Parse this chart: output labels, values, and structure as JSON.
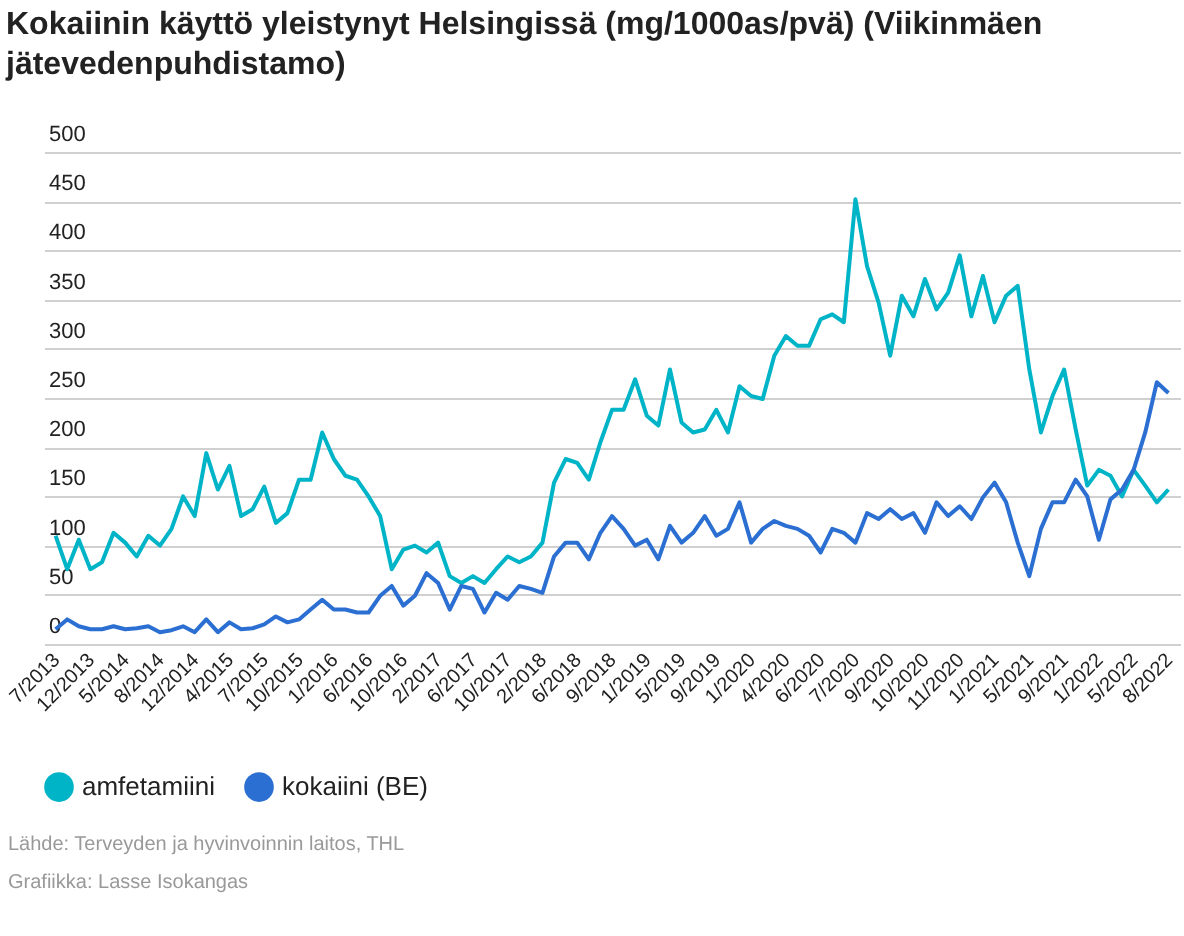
{
  "chart_data": {
    "type": "line",
    "title": "Kokaiinin käyttö yleistynyt Helsingissä (mg/1000as/pvä) (Viikinmäen jätevedenpuhdistamo)",
    "categories": [
      "7/2013",
      null,
      null,
      "12/2013",
      null,
      null,
      "5/2014",
      null,
      null,
      "8/2014",
      null,
      null,
      "12/2014",
      null,
      null,
      "4/2015",
      null,
      null,
      "7/2015",
      null,
      null,
      "10/2015",
      null,
      null,
      "1/2016",
      null,
      null,
      "6/2016",
      null,
      null,
      "10/2016",
      null,
      null,
      "2/2017",
      null,
      null,
      "6/2017",
      null,
      null,
      "10/2017",
      null,
      null,
      "2/2018",
      null,
      null,
      "6/2018",
      null,
      null,
      "9/2018",
      null,
      null,
      "1/2019",
      null,
      null,
      "5/2019",
      null,
      null,
      "9/2019",
      null,
      null,
      "1/2020",
      null,
      null,
      "4/2020",
      null,
      null,
      "6/2020",
      null,
      null,
      "7/2020",
      null,
      null,
      "9/2020",
      null,
      null,
      "10/2020",
      null,
      null,
      "11/2020",
      null,
      null,
      "1/2021",
      null,
      null,
      "5/2021",
      null,
      null,
      "9/2021",
      null,
      null,
      "1/2022",
      null,
      null,
      "5/2022",
      null,
      null,
      "8/2022"
    ],
    "series": [
      {
        "name": "amfetamiini",
        "color": "#00b4c8",
        "values": [
          110,
          76,
          106,
          76,
          83,
          113,
          103,
          89,
          110,
          100,
          117,
          150,
          130,
          194,
          157,
          181,
          130,
          137,
          160,
          123,
          133,
          167,
          167,
          215,
          188,
          171,
          167,
          150,
          130,
          76,
          96,
          100,
          93,
          103,
          69,
          62,
          69,
          62,
          76,
          89,
          83,
          89,
          103,
          164,
          188,
          184,
          167,
          205,
          238,
          238,
          269,
          232,
          222,
          279,
          225,
          215,
          218,
          238,
          215,
          262,
          252,
          249,
          293,
          313,
          303,
          303,
          330,
          335,
          327,
          452,
          384,
          347,
          293,
          354,
          333,
          371,
          340,
          357,
          395,
          333,
          374,
          327,
          354,
          364,
          279,
          215,
          252,
          279,
          218,
          161,
          177,
          171,
          150,
          177,
          161,
          144,
          157
        ]
      },
      {
        "name": "kokaiini (BE)",
        "color": "#2a6fd1",
        "values": [
          15,
          25,
          18,
          15,
          15,
          18,
          15,
          16,
          18,
          12,
          14,
          18,
          12,
          25,
          12,
          22,
          15,
          16,
          20,
          28,
          22,
          25,
          35,
          45,
          35,
          35,
          32,
          32,
          49,
          59,
          39,
          49,
          72,
          62,
          35,
          59,
          56,
          32,
          52,
          45,
          59,
          56,
          52,
          89,
          103,
          103,
          86,
          113,
          130,
          117,
          100,
          106,
          86,
          120,
          103,
          113,
          130,
          110,
          117,
          144,
          103,
          117,
          125,
          120,
          117,
          110,
          93,
          117,
          113,
          103,
          133,
          127,
          137,
          127,
          133,
          113,
          144,
          130,
          140,
          127,
          149,
          164,
          144,
          103,
          69,
          117,
          144,
          144,
          167,
          150,
          106,
          147,
          157,
          177,
          215,
          266,
          255
        ]
      }
    ],
    "ylim": [
      0,
      500
    ],
    "yticks": [
      0,
      50,
      100,
      150,
      200,
      250,
      300,
      350,
      400,
      450,
      500
    ],
    "grid": "y",
    "legend": "bottom",
    "marker": "none",
    "line_style": "solid",
    "annotations": [
      "Lähde: Terveyden ja hyvinvoinnin laitos, THL",
      "Grafiikka: Lasse Isokangas"
    ]
  }
}
